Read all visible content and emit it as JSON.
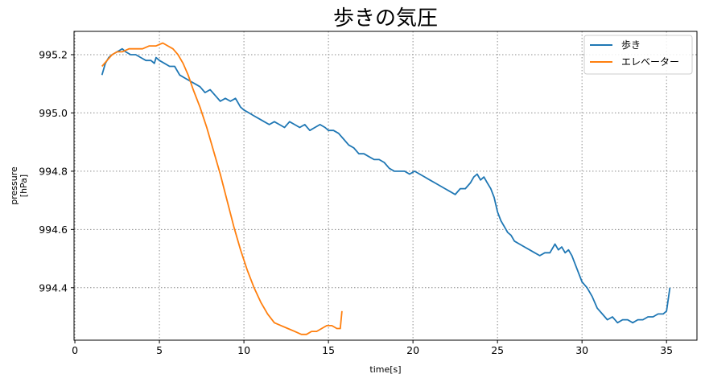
{
  "chart_data": {
    "type": "line",
    "title": "歩きの気圧",
    "xlabel": "time[s]",
    "ylabel": "pressure\n[hPa]",
    "xlim": [
      -0.05,
      36.8
    ],
    "ylim": [
      994.22,
      995.28
    ],
    "xticks": [
      0,
      5,
      10,
      15,
      20,
      25,
      30,
      35
    ],
    "yticks": [
      994.4,
      994.6,
      994.8,
      995.0,
      995.2
    ],
    "ytick_labels": [
      "994.4",
      "994.6",
      "994.8",
      "995.0",
      "995.2"
    ],
    "grid": true,
    "legend_position": "top-right",
    "series": [
      {
        "name": "歩き",
        "color": "#1f77b4",
        "x": [
          1.6,
          1.8,
          2.0,
          2.2,
          2.5,
          2.8,
          3.0,
          3.3,
          3.6,
          3.9,
          4.2,
          4.5,
          4.7,
          4.8,
          5.0,
          5.3,
          5.6,
          5.9,
          6.2,
          6.5,
          6.8,
          7.1,
          7.4,
          7.7,
          8.0,
          8.3,
          8.6,
          8.9,
          9.2,
          9.5,
          9.8,
          10.0,
          10.3,
          10.6,
          10.9,
          11.2,
          11.5,
          11.8,
          12.1,
          12.4,
          12.7,
          13.0,
          13.3,
          13.6,
          13.9,
          14.2,
          14.5,
          14.8,
          15.0,
          15.3,
          15.6,
          15.9,
          16.2,
          16.5,
          16.8,
          17.1,
          17.4,
          17.7,
          18.0,
          18.3,
          18.6,
          18.9,
          19.2,
          19.5,
          19.8,
          20.1,
          20.4,
          20.7,
          21.0,
          21.3,
          21.6,
          21.9,
          22.2,
          22.5,
          22.8,
          23.1,
          23.4,
          23.6,
          23.8,
          24.0,
          24.2,
          24.4,
          24.6,
          24.8,
          25.0,
          25.2,
          25.4,
          25.6,
          25.8,
          26.0,
          26.3,
          26.6,
          26.9,
          27.2,
          27.5,
          27.8,
          28.1,
          28.4,
          28.6,
          28.8,
          29.0,
          29.2,
          29.4,
          29.6,
          29.8,
          30.0,
          30.3,
          30.6,
          30.9,
          31.2,
          31.5,
          31.8,
          32.1,
          32.4,
          32.7,
          33.0,
          33.3,
          33.6,
          33.9,
          34.2,
          34.5,
          34.8,
          35.0,
          35.1,
          35.2
        ],
        "values": [
          995.13,
          995.17,
          995.19,
          995.2,
          995.21,
          995.22,
          995.21,
          995.2,
          995.2,
          995.19,
          995.18,
          995.18,
          995.17,
          995.19,
          995.18,
          995.17,
          995.16,
          995.16,
          995.13,
          995.12,
          995.11,
          995.1,
          995.09,
          995.07,
          995.08,
          995.06,
          995.04,
          995.05,
          995.04,
          995.05,
          995.02,
          995.01,
          995.0,
          994.99,
          994.98,
          994.97,
          994.96,
          994.97,
          994.96,
          994.95,
          994.97,
          994.96,
          994.95,
          994.96,
          994.94,
          994.95,
          994.96,
          994.95,
          994.94,
          994.94,
          994.93,
          994.91,
          994.89,
          994.88,
          994.86,
          994.86,
          994.85,
          994.84,
          994.84,
          994.83,
          994.81,
          994.8,
          994.8,
          994.8,
          994.79,
          994.8,
          994.79,
          994.78,
          994.77,
          994.76,
          994.75,
          994.74,
          994.73,
          994.72,
          994.74,
          994.74,
          994.76,
          994.78,
          994.79,
          994.77,
          994.78,
          994.76,
          994.74,
          994.71,
          994.66,
          994.63,
          994.61,
          994.59,
          994.58,
          994.56,
          994.55,
          994.54,
          994.53,
          994.52,
          994.51,
          994.52,
          994.52,
          994.55,
          994.53,
          994.54,
          994.52,
          994.53,
          994.51,
          994.48,
          994.45,
          994.42,
          994.4,
          994.37,
          994.33,
          994.31,
          994.29,
          994.3,
          994.28,
          994.29,
          994.29,
          994.28,
          994.29,
          994.29,
          994.3,
          994.3,
          994.31,
          994.31,
          994.32,
          994.36,
          994.4
        ]
      },
      {
        "name": "エレベーター",
        "color": "#ff7f0e",
        "x": [
          1.6,
          1.9,
          2.2,
          2.5,
          2.8,
          3.2,
          3.6,
          4.0,
          4.4,
          4.8,
          5.2,
          5.5,
          5.8,
          6.1,
          6.4,
          6.7,
          7.0,
          7.4,
          7.8,
          8.2,
          8.6,
          9.0,
          9.4,
          9.8,
          10.2,
          10.6,
          11.0,
          11.4,
          11.8,
          12.2,
          12.6,
          13.0,
          13.4,
          13.7,
          14.0,
          14.3,
          14.6,
          14.9,
          15.2,
          15.5,
          15.7,
          15.8
        ],
        "values": [
          995.16,
          995.18,
          995.2,
          995.21,
          995.21,
          995.22,
          995.22,
          995.22,
          995.23,
          995.23,
          995.24,
          995.23,
          995.22,
          995.2,
          995.17,
          995.13,
          995.08,
          995.02,
          994.95,
          994.87,
          994.79,
          994.7,
          994.61,
          994.53,
          994.46,
          994.4,
          994.35,
          994.31,
          994.28,
          994.27,
          994.26,
          994.25,
          994.24,
          994.24,
          994.25,
          994.25,
          994.26,
          994.27,
          994.27,
          994.26,
          994.26,
          994.32
        ]
      }
    ]
  }
}
